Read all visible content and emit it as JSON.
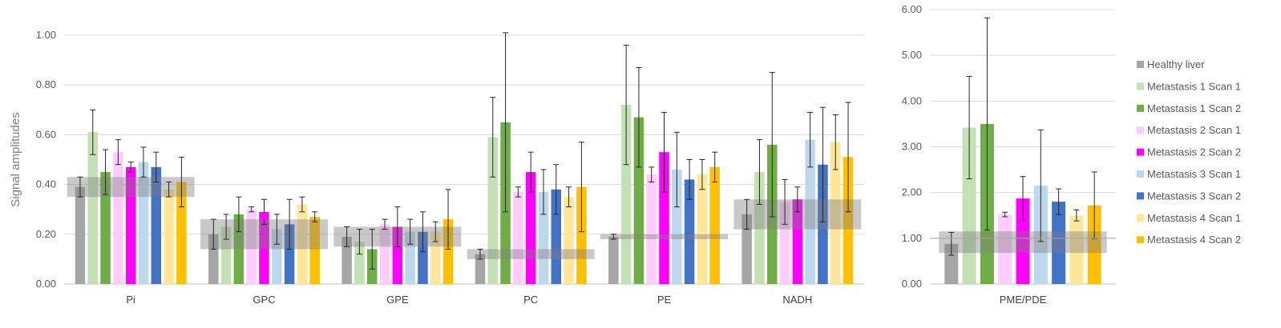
{
  "chart_data": [
    {
      "type": "bar",
      "ylabel": "Signal amplitudes",
      "ylim": [
        0,
        1.0
      ],
      "yticks": [
        "0.00",
        "0.20",
        "0.40",
        "0.60",
        "0.80",
        "1.00"
      ],
      "categories": [
        "Pi",
        "GPC",
        "GPE",
        "PC",
        "PE",
        "NADH"
      ],
      "series": [
        {
          "name": "Healthy liver",
          "color": "#a6a6a6",
          "values": [
            0.39,
            0.2,
            0.19,
            0.12,
            0.19,
            0.28
          ],
          "errors": [
            0.04,
            0.06,
            0.04,
            0.02,
            0.01,
            0.06
          ]
        },
        {
          "name": "Metastasis 1 Scan 1",
          "color": "#c5e0b4",
          "values": [
            0.61,
            0.23,
            0.17,
            0.59,
            0.72,
            0.45
          ],
          "errors": [
            0.09,
            0.05,
            0.05,
            0.16,
            0.24,
            0.13
          ]
        },
        {
          "name": "Metastasis 1 Scan 2",
          "color": "#70ad47",
          "values": [
            0.45,
            0.28,
            0.14,
            0.65,
            0.67,
            0.56
          ],
          "errors": [
            0.09,
            0.07,
            0.08,
            0.36,
            0.2,
            0.29
          ]
        },
        {
          "name": "Metastasis 2 Scan 1",
          "color": "#ffccff",
          "values": [
            0.53,
            0.3,
            0.24,
            0.37,
            0.44,
            0.33
          ],
          "errors": [
            0.05,
            0.01,
            0.02,
            0.02,
            0.03,
            0.09
          ]
        },
        {
          "name": "Metastasis 2 Scan 2",
          "color": "#ff00ff",
          "values": [
            0.47,
            0.29,
            0.23,
            0.45,
            0.53,
            0.34
          ],
          "errors": [
            0.02,
            0.05,
            0.08,
            0.08,
            0.16,
            0.05
          ]
        },
        {
          "name": "Metastasis 3 Scan 1",
          "color": "#bdd7ee",
          "values": [
            0.49,
            0.22,
            0.21,
            0.37,
            0.46,
            0.58
          ],
          "errors": [
            0.06,
            0.06,
            0.05,
            0.09,
            0.15,
            0.11
          ]
        },
        {
          "name": "Metastasis 3 Scan 2",
          "color": "#4472c4",
          "values": [
            0.47,
            0.24,
            0.21,
            0.38,
            0.42,
            0.48
          ],
          "errors": [
            0.06,
            0.1,
            0.08,
            0.1,
            0.08,
            0.23
          ]
        },
        {
          "name": "Metastasis 4 Scan 1",
          "color": "#ffe699",
          "values": [
            0.38,
            0.32,
            0.21,
            0.35,
            0.44,
            0.57
          ],
          "errors": [
            0.03,
            0.03,
            0.04,
            0.04,
            0.06,
            0.11
          ]
        },
        {
          "name": "Metastasis 4 Scan 2",
          "color": "#ffc000",
          "values": [
            0.41,
            0.27,
            0.26,
            0.39,
            0.47,
            0.51
          ],
          "errors": [
            0.1,
            0.02,
            0.12,
            0.18,
            0.06,
            0.22
          ]
        }
      ],
      "reference_bands": [
        {
          "category": "Pi",
          "low": 0.35,
          "high": 0.43
        },
        {
          "category": "GPC",
          "low": 0.14,
          "high": 0.26
        },
        {
          "category": "GPE",
          "low": 0.15,
          "high": 0.23
        },
        {
          "category": "PC",
          "low": 0.1,
          "high": 0.14
        },
        {
          "category": "PE",
          "low": 0.18,
          "high": 0.2
        },
        {
          "category": "NADH",
          "low": 0.22,
          "high": 0.34
        }
      ]
    },
    {
      "type": "bar",
      "ylim": [
        0,
        6.0
      ],
      "yticks": [
        "0.00",
        "1.00",
        "2.00",
        "3.00",
        "4.00",
        "5.00",
        "6.00"
      ],
      "categories": [
        "PME/PDE"
      ],
      "reference_line": 1.0,
      "reference_band": {
        "low": 0.68,
        "high": 1.15
      },
      "series": [
        {
          "name": "Healthy liver",
          "color": "#a6a6a6",
          "values": [
            0.88
          ],
          "errors": [
            0.25
          ]
        },
        {
          "name": "Metastasis 1 Scan 1",
          "color": "#c5e0b4",
          "values": [
            3.42
          ],
          "errors": [
            1.12
          ]
        },
        {
          "name": "Metastasis 1 Scan 2",
          "color": "#70ad47",
          "values": [
            3.5
          ],
          "errors": [
            2.32
          ]
        },
        {
          "name": "Metastasis 2 Scan 1",
          "color": "#ffccff",
          "values": [
            1.52
          ],
          "errors": [
            0.05
          ]
        },
        {
          "name": "Metastasis 2 Scan 2",
          "color": "#ff00ff",
          "values": [
            1.87
          ],
          "errors": [
            0.48
          ]
        },
        {
          "name": "Metastasis 3 Scan 1",
          "color": "#bdd7ee",
          "values": [
            2.15
          ],
          "errors": [
            1.22
          ]
        },
        {
          "name": "Metastasis 3 Scan 2",
          "color": "#4472c4",
          "values": [
            1.8
          ],
          "errors": [
            0.28
          ]
        },
        {
          "name": "Metastasis 4 Scan 1",
          "color": "#ffe699",
          "values": [
            1.5
          ],
          "errors": [
            0.12
          ]
        },
        {
          "name": "Metastasis 4 Scan 2",
          "color": "#ffc000",
          "values": [
            1.72
          ],
          "errors": [
            0.73
          ]
        }
      ]
    }
  ],
  "legend": [
    {
      "label": "Healthy liver",
      "color": "#a6a6a6"
    },
    {
      "label": "Metastasis 1 Scan 1",
      "color": "#c5e0b4"
    },
    {
      "label": "Metastasis 1 Scan 2",
      "color": "#70ad47"
    },
    {
      "label": "Metastasis 2 Scan 1",
      "color": "#ffccff"
    },
    {
      "label": "Metastasis 2 Scan 2",
      "color": "#ff00ff"
    },
    {
      "label": "Metastasis 3 Scan 1",
      "color": "#bdd7ee"
    },
    {
      "label": "Metastasis 3 Scan 2",
      "color": "#4472c4"
    },
    {
      "label": "Metastasis 4 Scan 1",
      "color": "#ffe699"
    },
    {
      "label": "Metastasis 4 Scan 2",
      "color": "#ffc000"
    }
  ]
}
